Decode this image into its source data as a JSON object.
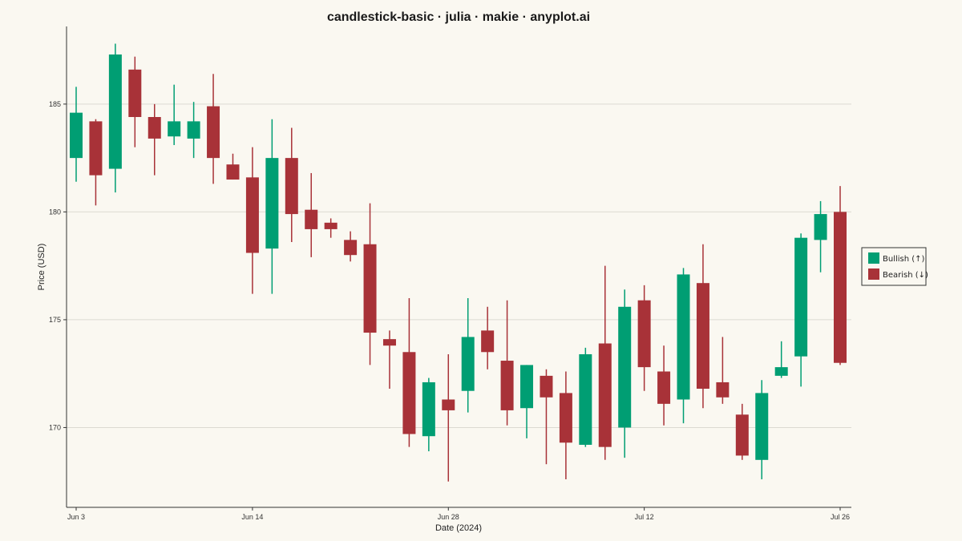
{
  "chart_data": {
    "type": "candlestick",
    "title": "candlestick-basic · julia · makie · anyplot.ai",
    "xlabel": "Date (2024)",
    "ylabel": "Price (USD)",
    "ylim": [
      166.3,
      188.6
    ],
    "yticks": [
      170,
      175,
      180,
      185
    ],
    "x_start_day": "Jun 3",
    "xticks": [
      {
        "label": "Jun 3",
        "day": 0
      },
      {
        "label": "Jun 14",
        "day": 9
      },
      {
        "label": "Jun 28",
        "day": 19
      },
      {
        "label": "Jul 12",
        "day": 29
      },
      {
        "label": "Jul 26",
        "day": 39
      }
    ],
    "grid": true,
    "legend_position": "right",
    "colors": {
      "bullish": "#009E73",
      "bearish": "#A83238"
    },
    "legend": [
      {
        "name": "Bullish (↑)",
        "key": "bullish"
      },
      {
        "name": "Bearish (↓)",
        "key": "bearish"
      }
    ],
    "candles": [
      {
        "date": "2024-06-03",
        "open": 182.5,
        "high": 185.8,
        "low": 181.4,
        "close": 184.6
      },
      {
        "date": "2024-06-04",
        "open": 184.2,
        "high": 184.3,
        "low": 180.3,
        "close": 181.7
      },
      {
        "date": "2024-06-05",
        "open": 182.0,
        "high": 187.8,
        "low": 180.9,
        "close": 187.3
      },
      {
        "date": "2024-06-06",
        "open": 186.6,
        "high": 187.2,
        "low": 183.0,
        "close": 184.4
      },
      {
        "date": "2024-06-07",
        "open": 184.4,
        "high": 185.0,
        "low": 181.7,
        "close": 183.4
      },
      {
        "date": "2024-06-10",
        "open": 183.5,
        "high": 185.9,
        "low": 183.1,
        "close": 184.2
      },
      {
        "date": "2024-06-11",
        "open": 183.4,
        "high": 185.1,
        "low": 182.5,
        "close": 184.2
      },
      {
        "date": "2024-06-12",
        "open": 184.9,
        "high": 186.4,
        "low": 181.3,
        "close": 182.5
      },
      {
        "date": "2024-06-13",
        "open": 182.2,
        "high": 182.7,
        "low": 181.5,
        "close": 181.5
      },
      {
        "date": "2024-06-14",
        "open": 181.6,
        "high": 183.0,
        "low": 176.2,
        "close": 178.1
      },
      {
        "date": "2024-06-17",
        "open": 178.3,
        "high": 184.3,
        "low": 176.2,
        "close": 182.5
      },
      {
        "date": "2024-06-18",
        "open": 182.5,
        "high": 183.9,
        "low": 178.6,
        "close": 179.9
      },
      {
        "date": "2024-06-19",
        "open": 180.1,
        "high": 181.8,
        "low": 177.9,
        "close": 179.2
      },
      {
        "date": "2024-06-20",
        "open": 179.5,
        "high": 179.7,
        "low": 178.8,
        "close": 179.2
      },
      {
        "date": "2024-06-21",
        "open": 178.7,
        "high": 179.1,
        "low": 177.7,
        "close": 178.0
      },
      {
        "date": "2024-06-24",
        "open": 178.5,
        "high": 180.4,
        "low": 172.9,
        "close": 174.4
      },
      {
        "date": "2024-06-25",
        "open": 174.1,
        "high": 174.5,
        "low": 171.8,
        "close": 173.8
      },
      {
        "date": "2024-06-26",
        "open": 173.5,
        "high": 176.0,
        "low": 169.1,
        "close": 169.7
      },
      {
        "date": "2024-06-27",
        "open": 169.6,
        "high": 172.3,
        "low": 168.9,
        "close": 172.1
      },
      {
        "date": "2024-06-28",
        "open": 171.3,
        "high": 173.4,
        "low": 167.5,
        "close": 170.8
      },
      {
        "date": "2024-07-01",
        "open": 171.7,
        "high": 176.0,
        "low": 170.7,
        "close": 174.2
      },
      {
        "date": "2024-07-02",
        "open": 174.5,
        "high": 175.6,
        "low": 172.7,
        "close": 173.5
      },
      {
        "date": "2024-07-03",
        "open": 173.1,
        "high": 175.9,
        "low": 170.1,
        "close": 170.8
      },
      {
        "date": "2024-07-04",
        "open": 170.9,
        "high": 172.9,
        "low": 169.5,
        "close": 172.9
      },
      {
        "date": "2024-07-05",
        "open": 172.4,
        "high": 172.7,
        "low": 168.3,
        "close": 171.4
      },
      {
        "date": "2024-07-08",
        "open": 171.6,
        "high": 172.6,
        "low": 167.6,
        "close": 169.3
      },
      {
        "date": "2024-07-09",
        "open": 169.2,
        "high": 173.7,
        "low": 169.1,
        "close": 173.4
      },
      {
        "date": "2024-07-10",
        "open": 173.9,
        "high": 177.5,
        "low": 168.5,
        "close": 169.1
      },
      {
        "date": "2024-07-11",
        "open": 170.0,
        "high": 176.4,
        "low": 168.6,
        "close": 175.6
      },
      {
        "date": "2024-07-12",
        "open": 175.9,
        "high": 176.6,
        "low": 171.7,
        "close": 172.8
      },
      {
        "date": "2024-07-15",
        "open": 172.6,
        "high": 173.8,
        "low": 170.1,
        "close": 171.1
      },
      {
        "date": "2024-07-16",
        "open": 171.3,
        "high": 177.4,
        "low": 170.2,
        "close": 177.1
      },
      {
        "date": "2024-07-17",
        "open": 176.7,
        "high": 178.5,
        "low": 170.9,
        "close": 171.8
      },
      {
        "date": "2024-07-18",
        "open": 172.1,
        "high": 174.2,
        "low": 171.1,
        "close": 171.4
      },
      {
        "date": "2024-07-19",
        "open": 170.6,
        "high": 171.1,
        "low": 168.5,
        "close": 168.7
      },
      {
        "date": "2024-07-22",
        "open": 168.5,
        "high": 172.2,
        "low": 167.6,
        "close": 171.6
      },
      {
        "date": "2024-07-23",
        "open": 172.4,
        "high": 174.0,
        "low": 172.3,
        "close": 172.8
      },
      {
        "date": "2024-07-24",
        "open": 173.3,
        "high": 179.0,
        "low": 171.9,
        "close": 178.8
      },
      {
        "date": "2024-07-25",
        "open": 178.7,
        "high": 180.5,
        "low": 177.2,
        "close": 179.9
      },
      {
        "date": "2024-07-26",
        "open": 180.0,
        "high": 181.2,
        "low": 172.9,
        "close": 173.0
      }
    ]
  }
}
